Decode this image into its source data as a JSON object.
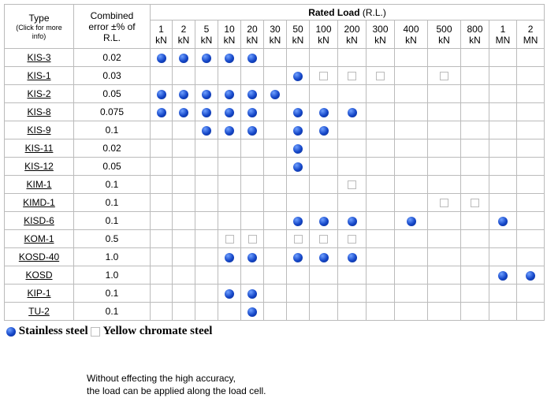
{
  "header": {
    "type": "Type",
    "type_note": "(Click for more info)",
    "error": "Combined error ±% of R.L.",
    "rated_load": "Rated Load",
    "rated_load_note": "(R.L.)",
    "columns": [
      {
        "value": "1",
        "unit": "kN"
      },
      {
        "value": "2",
        "unit": "kN"
      },
      {
        "value": "5",
        "unit": "kN"
      },
      {
        "value": "10",
        "unit": "kN"
      },
      {
        "value": "20",
        "unit": "kN"
      },
      {
        "value": "30",
        "unit": "kN"
      },
      {
        "value": "50",
        "unit": "kN"
      },
      {
        "value": "100",
        "unit": "kN"
      },
      {
        "value": "200",
        "unit": "kN"
      },
      {
        "value": "300",
        "unit": "kN"
      },
      {
        "value": "400",
        "unit": "kN"
      },
      {
        "value": "500",
        "unit": "kN"
      },
      {
        "value": "800",
        "unit": "kN"
      },
      {
        "value": "1",
        "unit": "MN"
      },
      {
        "value": "2",
        "unit": "MN"
      }
    ]
  },
  "table": {
    "rows": [
      {
        "type": "KIS-3",
        "error": "0.02",
        "cells": [
          "S",
          "S",
          "S",
          "S",
          "S",
          null,
          null,
          null,
          null,
          null,
          null,
          null,
          null,
          null,
          null
        ]
      },
      {
        "type": "KIS-1",
        "error": "0.03",
        "cells": [
          null,
          null,
          null,
          null,
          null,
          null,
          "S",
          "Y",
          "Y",
          "Y",
          null,
          "Y",
          null,
          null,
          null
        ]
      },
      {
        "type": "KIS-2",
        "error": "0.05",
        "cells": [
          "S",
          "S",
          "S",
          "S",
          "S",
          "S",
          null,
          null,
          null,
          null,
          null,
          null,
          null,
          null,
          null
        ]
      },
      {
        "type": "KIS-8",
        "error": "0.075",
        "cells": [
          "S",
          "S",
          "S",
          "S",
          "S",
          null,
          "S",
          "S",
          "S",
          null,
          null,
          null,
          null,
          null,
          null
        ]
      },
      {
        "type": "KIS-9",
        "error": "0.1",
        "cells": [
          null,
          null,
          "S",
          "S",
          "S",
          null,
          "S",
          "S",
          null,
          null,
          null,
          null,
          null,
          null,
          null
        ]
      },
      {
        "type": "KIS-11",
        "error": "0.02",
        "cells": [
          null,
          null,
          null,
          null,
          null,
          null,
          "S",
          null,
          null,
          null,
          null,
          null,
          null,
          null,
          null
        ]
      },
      {
        "type": "KIS-12",
        "error": "0.05",
        "cells": [
          null,
          null,
          null,
          null,
          null,
          null,
          "S",
          null,
          null,
          null,
          null,
          null,
          null,
          null,
          null
        ]
      },
      {
        "type": "KIM-1",
        "error": "0.1",
        "cells": [
          null,
          null,
          null,
          null,
          null,
          null,
          null,
          null,
          "Y",
          null,
          null,
          null,
          null,
          null,
          null
        ]
      },
      {
        "type": "KIMD-1",
        "error": "0.1",
        "cells": [
          null,
          null,
          null,
          null,
          null,
          null,
          null,
          null,
          null,
          null,
          null,
          "Y",
          "Y",
          null,
          null
        ]
      },
      {
        "type": "KISD-6",
        "error": "0.1",
        "cells": [
          null,
          null,
          null,
          null,
          null,
          null,
          "S",
          "S",
          "S",
          null,
          "S",
          null,
          null,
          "S",
          null
        ]
      },
      {
        "type": "KOM-1",
        "error": "0.5",
        "cells": [
          null,
          null,
          null,
          "Y",
          "Y",
          null,
          "Y",
          "Y",
          "Y",
          null,
          null,
          null,
          null,
          null,
          null
        ]
      },
      {
        "type": "KOSD-40",
        "error": "1.0",
        "cells": [
          null,
          null,
          null,
          "S",
          "S",
          null,
          "S",
          "S",
          "S",
          null,
          null,
          null,
          null,
          null,
          null
        ]
      },
      {
        "type": "KOSD",
        "error": "1.0",
        "cells": [
          null,
          null,
          null,
          null,
          null,
          null,
          null,
          null,
          null,
          null,
          null,
          null,
          null,
          "S",
          "S"
        ]
      },
      {
        "type": "KIP-1",
        "error": "0.1",
        "cells": [
          null,
          null,
          null,
          "S",
          "S",
          null,
          null,
          null,
          null,
          null,
          null,
          null,
          null,
          null,
          null
        ]
      },
      {
        "type": "TU-2",
        "error": "0.1",
        "cells": [
          null,
          null,
          null,
          null,
          "S",
          null,
          null,
          null,
          null,
          null,
          null,
          null,
          null,
          null,
          null
        ]
      }
    ]
  },
  "legend": {
    "stainless": "Stainless steel",
    "chromate": "Yellow chromate steel"
  },
  "footer": {
    "line1": "Without effecting the high accuracy,",
    "line2": "the load can be applied along the load cell."
  }
}
